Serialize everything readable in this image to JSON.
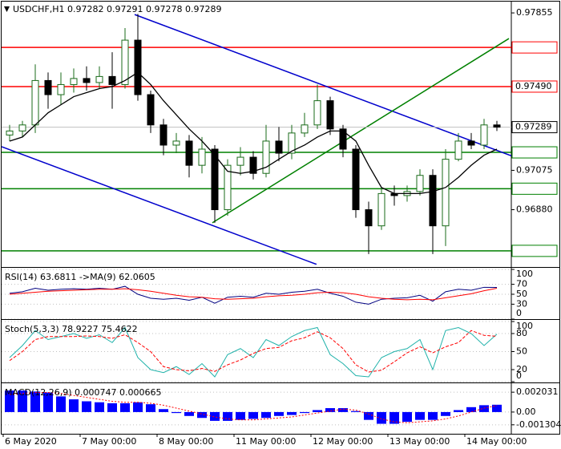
{
  "chart_data": [
    {
      "type": "candlestick",
      "title": "USDCHF,H1  0.97282 0.97291 0.97278 0.97289",
      "categories": [
        "6 May 2020",
        null,
        null,
        null,
        null,
        null,
        "7 May 00:00",
        null,
        null,
        null,
        null,
        null,
        "8 May 00:00",
        null,
        null,
        null,
        null,
        null,
        "11 May 00:00",
        null,
        null,
        null,
        null,
        null,
        "12 May 00:00",
        null,
        null,
        null,
        null,
        null,
        "13 May 00:00",
        null,
        null,
        null,
        null,
        null,
        "14 May 00:00",
        null,
        null
      ],
      "open": [
        0.9725,
        0.9727,
        0.973,
        0.9752,
        0.9745,
        0.975,
        0.9753,
        0.9751,
        0.9754,
        0.975,
        0.9772,
        0.9745,
        0.973,
        0.972,
        0.9722,
        0.971,
        0.9718,
        0.9688,
        0.971,
        0.9714,
        0.9706,
        0.9722,
        0.9716,
        0.9726,
        0.973,
        0.9742,
        0.9728,
        0.9718,
        0.9688,
        0.968,
        0.9696,
        0.9695,
        0.9697,
        0.9705,
        0.968,
        0.9713,
        0.9722,
        0.972,
        0.973
      ],
      "high": [
        0.973,
        0.9732,
        0.976,
        0.9756,
        0.9756,
        0.9758,
        0.9759,
        0.9759,
        0.9766,
        0.9778,
        0.9785,
        0.9747,
        0.9733,
        0.9726,
        0.9725,
        0.9724,
        0.972,
        0.9713,
        0.9719,
        0.9717,
        0.973,
        0.9729,
        0.973,
        0.9736,
        0.975,
        0.9744,
        0.973,
        0.972,
        0.9692,
        0.9699,
        0.97,
        0.97,
        0.9708,
        0.9708,
        0.9718,
        0.9726,
        0.9726,
        0.9733,
        0.9732
      ],
      "low": [
        0.9722,
        0.9724,
        0.9726,
        0.9738,
        0.974,
        0.9746,
        0.9747,
        0.9748,
        0.9738,
        0.9748,
        0.9742,
        0.9726,
        0.9715,
        0.9716,
        0.9704,
        0.9706,
        0.96815,
        0.9685,
        0.9705,
        0.9703,
        0.9704,
        0.9712,
        0.9713,
        0.9724,
        0.9728,
        0.9725,
        0.9714,
        0.9684,
        0.9666,
        0.9678,
        0.969,
        0.9692,
        0.9695,
        0.9666,
        0.967,
        0.9712,
        0.9718,
        0.9718,
        0.9727
      ],
      "close": [
        0.9727,
        0.973,
        0.9752,
        0.9745,
        0.975,
        0.9753,
        0.9751,
        0.9754,
        0.975,
        0.9772,
        0.9745,
        0.973,
        0.972,
        0.9722,
        0.971,
        0.9718,
        0.9688,
        0.971,
        0.9714,
        0.9706,
        0.9722,
        0.9716,
        0.9726,
        0.973,
        0.9742,
        0.9728,
        0.9718,
        0.9688,
        0.968,
        0.9696,
        0.9695,
        0.9697,
        0.9705,
        0.968,
        0.9713,
        0.9722,
        0.972,
        0.973,
        0.97289
      ],
      "bull_color": "#1a6b1a",
      "bear_color": "#000000",
      "ma": {
        "color": "#000000",
        "values": [
          0.9722,
          0.9724,
          0.973,
          0.9736,
          0.974,
          0.9744,
          0.9746,
          0.9748,
          0.9749,
          0.9752,
          0.9756,
          0.975,
          0.9742,
          0.9735,
          0.9728,
          0.9722,
          0.9715,
          0.9707,
          0.9706,
          0.9707,
          0.9709,
          0.9713,
          0.9717,
          0.972,
          0.9724,
          0.9727,
          0.9727,
          0.9722,
          0.971,
          0.9699,
          0.9696,
          0.9696,
          0.9696,
          0.9697,
          0.9699,
          0.9704,
          0.971,
          0.9715,
          0.9718
        ]
      },
      "ylim": [
        0.96608,
        0.97911
      ],
      "yticks": [
        0.97855,
        0.97075,
        {
          "value": 0.9688,
          "label": "0.96880"
        }
      ],
      "levels": [
        {
          "value": 0.97684,
          "color": "#ff0000"
        },
        {
          "value": 0.9749,
          "label": "0.97490",
          "color": "#ff0000"
        },
        {
          "value": 0.97164,
          "color": "#008000"
        },
        {
          "value": 0.96984,
          "color": "#008000"
        },
        {
          "value": 0.96676,
          "color": "#008000"
        }
      ],
      "last_price": 0.97289,
      "trendlines": [
        {
          "color": "#0000cc",
          "x": [
            9.75,
            39.25
          ],
          "y": [
            0.97847,
            0.97144
          ]
        },
        {
          "color": "#0000cc",
          "x": [
            -0.625,
            23.94
          ],
          "y": [
            0.97192,
            0.96609
          ]
        },
        {
          "color": "#008000",
          "x": [
            15.81,
            38.94
          ],
          "y": [
            0.96815,
            0.97728
          ]
        }
      ]
    },
    {
      "type": "line",
      "title": "RSI(14) 63.6811 ->MA(9) 62.0605",
      "ylim": [
        0,
        100
      ],
      "yticks": [
        100,
        70,
        50,
        30,
        0
      ],
      "series": [
        {
          "color": "#000080",
          "style": "solid",
          "values": [
            52,
            55,
            62,
            58,
            60,
            61,
            60,
            62,
            60,
            66,
            50,
            42,
            40,
            42,
            38,
            44,
            32,
            44,
            46,
            44,
            52,
            50,
            54,
            56,
            60,
            52,
            46,
            34,
            30,
            40,
            42,
            43,
            48,
            36,
            55,
            60,
            58,
            64,
            63.6811
          ]
        },
        {
          "color": "#ff0000",
          "style": "solid",
          "values": [
            50,
            52,
            54,
            56,
            57,
            58,
            59,
            60,
            60,
            61,
            59,
            56,
            52,
            48,
            45,
            44,
            41,
            40,
            41,
            42,
            45,
            47,
            48,
            50,
            53,
            54,
            53,
            50,
            45,
            42,
            40,
            39,
            40,
            39,
            43,
            47,
            51,
            57,
            62.0605
          ]
        }
      ]
    },
    {
      "type": "line",
      "title": "Stoch(5,3,3) 78.9227 75.4622",
      "ylim": [
        0,
        100
      ],
      "yticks": [
        100,
        80,
        50,
        20,
        0
      ],
      "series": [
        {
          "color": "#20b2aa",
          "style": "solid",
          "values": [
            40,
            60,
            85,
            70,
            75,
            80,
            72,
            78,
            65,
            90,
            40,
            20,
            15,
            25,
            12,
            30,
            8,
            45,
            55,
            40,
            70,
            60,
            75,
            85,
            90,
            45,
            30,
            10,
            8,
            40,
            50,
            55,
            70,
            20,
            85,
            90,
            80,
            60,
            78.9227
          ]
        },
        {
          "color": "#ff0000",
          "style": "dashed",
          "values": [
            35,
            50,
            70,
            75,
            75,
            75,
            76,
            75,
            72,
            78,
            65,
            50,
            25,
            20,
            18,
            22,
            17,
            28,
            36,
            47,
            55,
            57,
            68,
            73,
            83,
            73,
            55,
            28,
            16,
            19,
            33,
            48,
            58,
            48,
            58,
            65,
            85,
            77,
            75.4622
          ]
        }
      ]
    },
    {
      "type": "macd",
      "title": "MACD(12,26,9) 0.000747 0.000665",
      "ylim": [
        -0.002221,
        0.002781
      ],
      "yticks": [
        0.002031,
        {
          "value": 0,
          "label": "0.00"
        },
        -0.001304
      ],
      "histogram": {
        "color": "#0000ff",
        "values": [
          0.0022,
          0.0022,
          0.0021,
          0.002,
          0.0016,
          0.0013,
          0.0011,
          0.001,
          0.0009,
          0.0009,
          0.001,
          0.0008,
          0.0003,
          -0.0001,
          -0.0004,
          -0.0006,
          -0.0009,
          -0.0009,
          -0.0008,
          -0.0007,
          -0.0006,
          -0.0004,
          -0.0003,
          -0.0001,
          0.0002,
          0.0004,
          0.0004,
          0.0001,
          -0.0008,
          -0.0012,
          -0.0012,
          -0.001,
          -0.0008,
          -0.0008,
          -0.0004,
          0.0002,
          0.0005,
          0.0007,
          0.000747
        ]
      },
      "signal": {
        "color": "#ff0000",
        "style": "dotted",
        "values": [
          0.0018,
          0.0019,
          0.002,
          0.002,
          0.0019,
          0.0017,
          0.0015,
          0.0013,
          0.0011,
          0.001,
          0.001,
          0.0009,
          0.0007,
          0.0004,
          0.0001,
          -0.0002,
          -0.0005,
          -0.0007,
          -0.0008,
          -0.0008,
          -0.0007,
          -0.0006,
          -0.0005,
          -0.0003,
          -0.0001,
          0.0001,
          0.0003,
          0.0002,
          -0.0002,
          -0.0007,
          -0.001,
          -0.0011,
          -0.001,
          -0.0009,
          -0.0007,
          -0.0004,
          0.0,
          0.0004,
          0.000665
        ]
      }
    }
  ]
}
